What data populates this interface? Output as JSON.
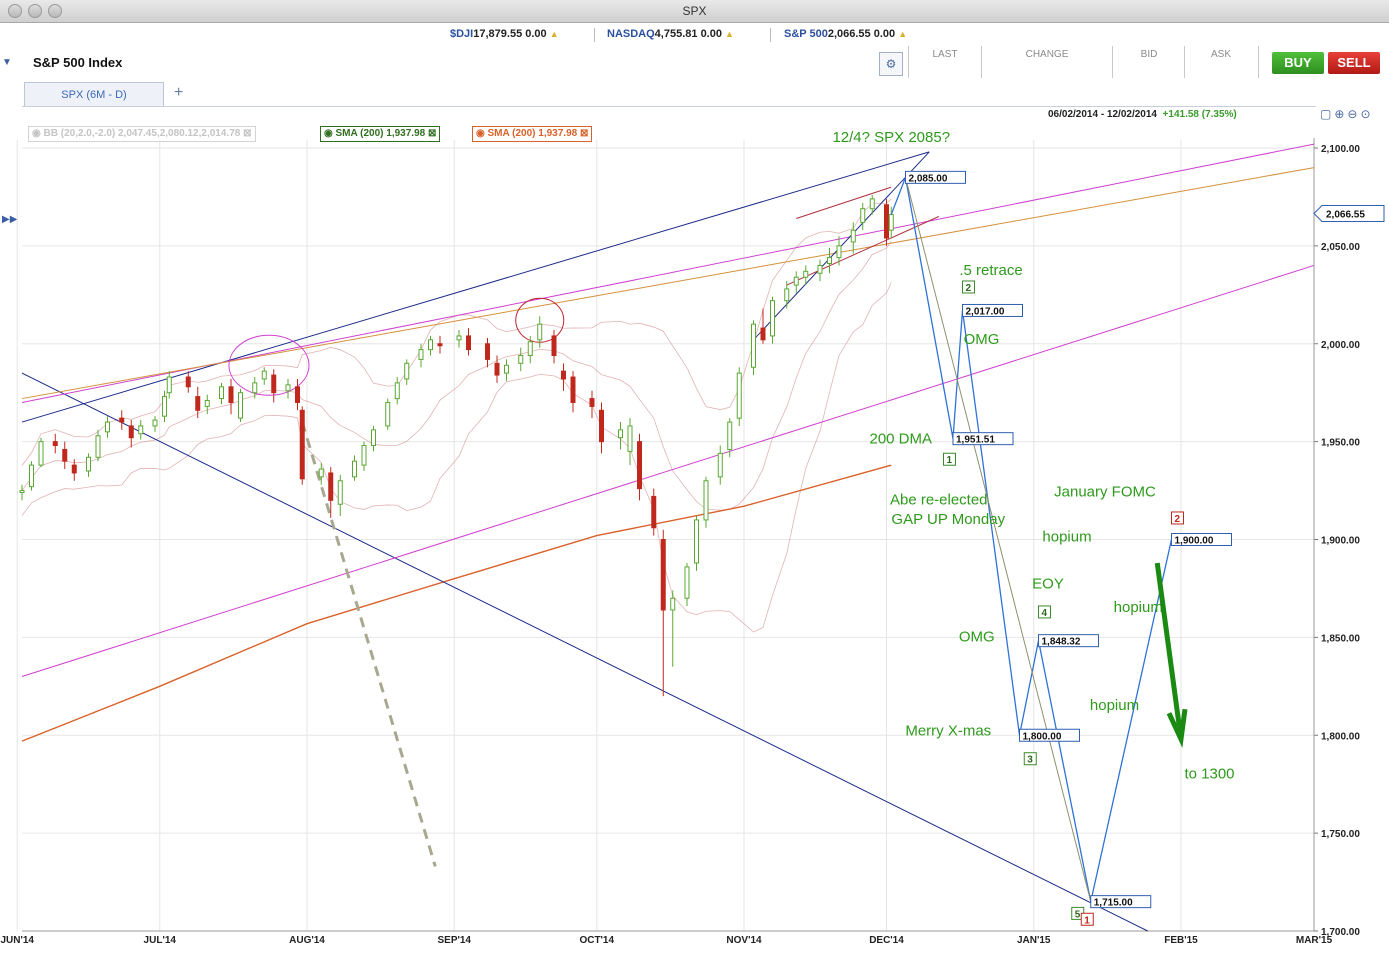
{
  "window": {
    "title": "SPX"
  },
  "tickers": [
    {
      "symbol": "$DJI",
      "price": "17,879.55",
      "change": "0.00"
    },
    {
      "symbol": "NASDAQ",
      "price": "4,755.81",
      "change": "0.00"
    },
    {
      "symbol": "S&P 500",
      "price": "2,066.55",
      "change": "0.00"
    }
  ],
  "header": {
    "index_name": "S&P 500 Index",
    "columns": [
      "LAST",
      "CHANGE",
      "BID",
      "ASK"
    ],
    "buy_label": "BUY",
    "sell_label": "SELL"
  },
  "tab": {
    "label": "SPX (6M - D)",
    "add_label": "+"
  },
  "legend": {
    "bb": "BB (20,2.0,-2.0) 2,047.45,2,080.12,2,014.78",
    "sma1": "SMA (200) 1,937.98",
    "sma2": "SMA (200) 1,937.98"
  },
  "range": {
    "dates": "06/02/2014 - 12/02/2014",
    "change": "+141.58 (7.35%)"
  },
  "colors": {
    "up": "#5aa832",
    "down": "#c0281e",
    "sma_orange": "#d9622b",
    "sma_green": "#2f6e1f",
    "annot_green": "#2e9a1c",
    "wave_blue": "#2f72d8",
    "magenta": "#d040d0",
    "navy": "#1c2a8a"
  },
  "chart_data": {
    "type": "candlestick",
    "title": "",
    "ylim": [
      1700,
      2100
    ],
    "y_ticks": [
      "2,100.00",
      "2,050.00",
      "2,000.00",
      "1,950.00",
      "1,900.00",
      "1,850.00",
      "1,800.00",
      "1,750.00",
      "1,700.00"
    ],
    "x_tick_labels": [
      "JUN'14",
      "JUL'14",
      "AUG'14",
      "SEP'14",
      "OCT'14",
      "NOV'14",
      "DEC'14",
      "JAN'15",
      "FEB'15",
      "MAR'15"
    ],
    "x_range": [
      "2014-06-02",
      "2015-03-01"
    ],
    "last_price": "2,066.55",
    "candles_approx": [
      [
        "2014-06-02",
        1924,
        1925,
        1920,
        1928
      ],
      [
        "2014-06-04",
        1927,
        1938,
        1925,
        1940
      ],
      [
        "2014-06-06",
        1938,
        1950,
        1937,
        1952
      ],
      [
        "2014-06-09",
        1950,
        1948,
        1944,
        1954
      ],
      [
        "2014-06-11",
        1946,
        1940,
        1936,
        1950
      ],
      [
        "2014-06-13",
        1938,
        1934,
        1930,
        1941
      ],
      [
        "2014-06-16",
        1935,
        1942,
        1932,
        1944
      ],
      [
        "2014-06-18",
        1942,
        1953,
        1940,
        1956
      ],
      [
        "2014-06-20",
        1955,
        1960,
        1952,
        1963
      ],
      [
        "2014-06-23",
        1962,
        1960,
        1956,
        1966
      ],
      [
        "2014-06-25",
        1958,
        1952,
        1947,
        1961
      ],
      [
        "2014-06-27",
        1954,
        1958,
        1951,
        1961
      ],
      [
        "2014-06-30",
        1958,
        1961,
        1955,
        1963
      ],
      [
        "2014-07-02",
        1963,
        1973,
        1960,
        1976
      ],
      [
        "2014-07-03",
        1975,
        1983,
        1972,
        1986
      ],
      [
        "2014-07-07",
        1983,
        1978,
        1975,
        1986
      ],
      [
        "2014-07-09",
        1973,
        1966,
        1962,
        1978
      ],
      [
        "2014-07-11",
        1968,
        1971,
        1964,
        1974
      ],
      [
        "2014-07-14",
        1972,
        1978,
        1969,
        1980
      ],
      [
        "2014-07-16",
        1978,
        1970,
        1964,
        1982
      ],
      [
        "2014-07-18",
        1962,
        1975,
        1960,
        1977
      ],
      [
        "2014-07-21",
        1975,
        1980,
        1972,
        1983
      ],
      [
        "2014-07-23",
        1982,
        1986,
        1979,
        1988
      ],
      [
        "2014-07-25",
        1984,
        1975,
        1970,
        1987
      ],
      [
        "2014-07-28",
        1976,
        1979,
        1972,
        1982
      ],
      [
        "2014-07-30",
        1978,
        1970,
        1966,
        1982
      ],
      [
        "2014-07-31",
        1966,
        1931,
        1928,
        1968
      ],
      [
        "2014-08-04",
        1932,
        1936,
        1928,
        1939
      ],
      [
        "2014-08-06",
        1934,
        1920,
        1911,
        1937
      ],
      [
        "2014-08-08",
        1918,
        1930,
        1912,
        1933
      ],
      [
        "2014-08-11",
        1932,
        1940,
        1930,
        1943
      ],
      [
        "2014-08-13",
        1938,
        1948,
        1935,
        1950
      ],
      [
        "2014-08-15",
        1948,
        1956,
        1945,
        1958
      ],
      [
        "2014-08-18",
        1958,
        1970,
        1956,
        1972
      ],
      [
        "2014-08-20",
        1972,
        1980,
        1969,
        1983
      ],
      [
        "2014-08-22",
        1982,
        1990,
        1979,
        1992
      ],
      [
        "2014-08-25",
        1992,
        1997,
        1988,
        2000
      ],
      [
        "2014-08-27",
        1997,
        2002,
        1994,
        2004
      ],
      [
        "2014-08-29",
        2000,
        1999,
        1995,
        2004
      ],
      [
        "2014-09-02",
        2002,
        2004,
        1998,
        2007
      ],
      [
        "2014-09-04",
        2004,
        1997,
        1994,
        2008
      ],
      [
        "2014-09-08",
        2000,
        1992,
        1988,
        2003
      ],
      [
        "2014-09-10",
        1990,
        1984,
        1980,
        1994
      ],
      [
        "2014-09-12",
        1985,
        1989,
        1981,
        1992
      ],
      [
        "2014-09-15",
        1990,
        1994,
        1986,
        1998
      ],
      [
        "2014-09-17",
        1994,
        2001,
        1990,
        2004
      ],
      [
        "2014-09-19",
        2002,
        2010,
        1998,
        2014
      ],
      [
        "2014-09-22",
        2004,
        1994,
        1990,
        2007
      ],
      [
        "2014-09-24",
        1986,
        1982,
        1976,
        1990
      ],
      [
        "2014-09-26",
        1983,
        1970,
        1965,
        1986
      ],
      [
        "2014-09-30",
        1972,
        1968,
        1962,
        1976
      ],
      [
        "2014-10-02",
        1966,
        1950,
        1944,
        1970
      ],
      [
        "2014-10-06",
        1952,
        1956,
        1946,
        1960
      ],
      [
        "2014-10-08",
        1945,
        1958,
        1938,
        1962
      ],
      [
        "2014-10-10",
        1950,
        1926,
        1920,
        1954
      ],
      [
        "2014-10-13",
        1922,
        1906,
        1902,
        1926
      ],
      [
        "2014-10-15",
        1900,
        1864,
        1820,
        1905
      ],
      [
        "2014-10-17",
        1864,
        1870,
        1835,
        1874
      ],
      [
        "2014-10-20",
        1870,
        1886,
        1866,
        1888
      ],
      [
        "2014-10-22",
        1888,
        1910,
        1884,
        1912
      ],
      [
        "2014-10-24",
        1910,
        1930,
        1906,
        1932
      ],
      [
        "2014-10-27",
        1932,
        1944,
        1928,
        1948
      ],
      [
        "2014-10-29",
        1946,
        1960,
        1942,
        1962
      ],
      [
        "2014-10-31",
        1962,
        1985,
        1958,
        1988
      ],
      [
        "2014-11-03",
        1988,
        2010,
        1984,
        2012
      ],
      [
        "2014-11-05",
        2008,
        2002,
        2000,
        2018
      ],
      [
        "2014-11-07",
        2004,
        2022,
        2000,
        2024
      ],
      [
        "2014-11-10",
        2022,
        2028,
        2018,
        2032
      ],
      [
        "2014-11-12",
        2030,
        2034,
        2026,
        2037
      ],
      [
        "2014-11-14",
        2034,
        2037,
        2030,
        2040
      ],
      [
        "2014-11-17",
        2036,
        2040,
        2032,
        2043
      ],
      [
        "2014-11-19",
        2041,
        2044,
        2036,
        2049
      ],
      [
        "2014-11-21",
        2044,
        2050,
        2040,
        2055
      ],
      [
        "2014-11-24",
        2052,
        2058,
        2046,
        2062
      ],
      [
        "2014-11-26",
        2062,
        2069,
        2058,
        2072
      ],
      [
        "2014-11-28",
        2069,
        2074,
        2066,
        2076
      ],
      [
        "2014-12-01",
        2071,
        2054,
        2050,
        2074
      ],
      [
        "2014-12-02",
        2058,
        2066,
        2054,
        2070
      ]
    ],
    "forecast_path": [
      {
        "label": "2,085.00",
        "price": 2085,
        "date": "2014-12-05"
      },
      {
        "label": "1,951.51",
        "price": 1951.51,
        "date": "2014-12-15"
      },
      {
        "label": "2,017.00",
        "price": 2017,
        "date": "2014-12-17"
      },
      {
        "label": "1,800.00",
        "price": 1800,
        "date": "2014-12-29"
      },
      {
        "label": "1,848.32",
        "price": 1848.32,
        "date": "2015-01-02"
      },
      {
        "label": "1,715.00",
        "price": 1715,
        "date": "2015-01-13"
      },
      {
        "label": "1,900.00",
        "price": 1900,
        "date": "2015-01-30"
      }
    ],
    "wave_markers": [
      {
        "label": "1",
        "price": 1941,
        "date": "2014-12-13"
      },
      {
        "label": "2",
        "price": 2029,
        "date": "2014-12-17"
      },
      {
        "label": "3",
        "price": 1788,
        "date": "2014-12-30"
      },
      {
        "label": "4",
        "price": 1863,
        "date": "2015-01-02"
      },
      {
        "label": "5",
        "price": 1709,
        "date": "2015-01-09"
      },
      {
        "label": "1",
        "price": 1706,
        "date": "2015-01-11"
      },
      {
        "label": "2",
        "price": 1911,
        "date": "2015-01-30"
      }
    ],
    "annotations": [
      "12/4?  SPX 2085?",
      ".5 retrace",
      "OMG",
      "200 DMA",
      "Abe re-elected",
      "GAP UP Monday",
      "January FOMC",
      "hopium",
      "EOY",
      "hopium",
      "OMG",
      "hopium",
      "Merry X-mas",
      "to 1300"
    ]
  }
}
